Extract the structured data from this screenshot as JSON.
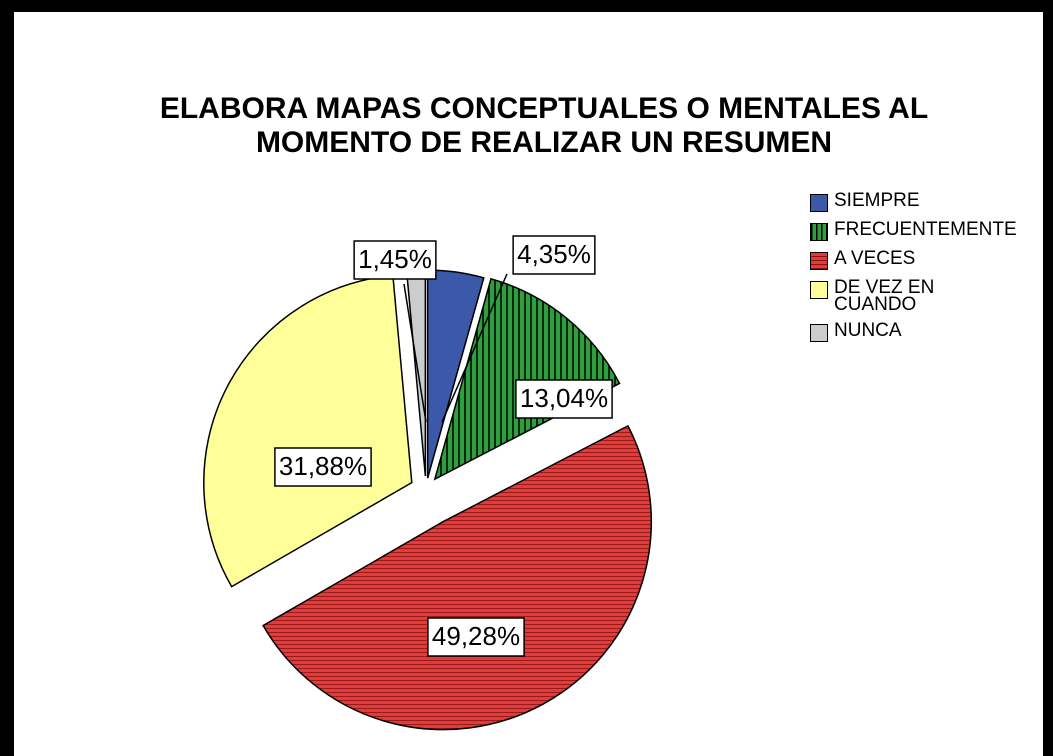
{
  "chart_data": {
    "type": "pie",
    "title": "ELABORA MAPAS CONCEPTUALES O MENTALES AL MOMENTO DE REALIZAR UN RESUMEN",
    "categories": [
      "SIEMPRE",
      "FRECUENTEMENTE",
      "A VECES",
      "DE VEZ EN CUANDO",
      "NUNCA"
    ],
    "values": [
      4.35,
      13.04,
      49.28,
      31.88,
      1.45
    ],
    "value_labels": [
      "4,35%",
      "13,04%",
      "49,28%",
      "31,88%",
      "1,45%"
    ],
    "colors": [
      "#3c58a8",
      "#2e9e3e",
      "#e03c3c",
      "#ffff99",
      "#cccccc"
    ],
    "legend": "right"
  }
}
